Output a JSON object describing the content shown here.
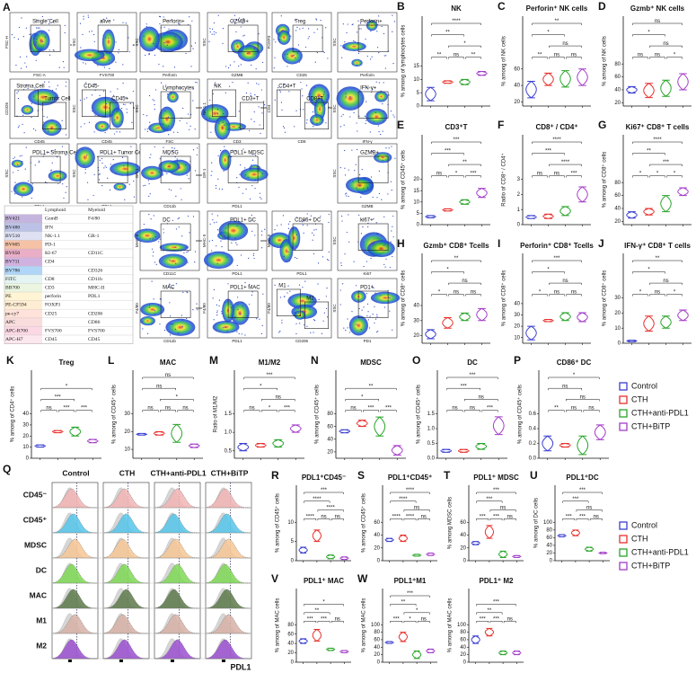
{
  "figure_letter": "A",
  "flow": {
    "plots": [
      {
        "x": "FSC-A",
        "y": "FSC-H",
        "gates": [
          "Single Cell"
        ]
      },
      {
        "x": "FVS700",
        "y": "SSC",
        "gates": [
          "alive"
        ]
      },
      {
        "x": "Perforin",
        "y": "SSC",
        "gates": [
          "Perforin+"
        ]
      },
      {
        "x": "GZMB",
        "y": "SSC",
        "gates": [
          "GZMB+"
        ]
      },
      {
        "x": "CD25",
        "y": "FOXP3",
        "gates": [
          "Treg"
        ]
      },
      {
        "x": "Perforin",
        "y": "SSC",
        "gates": [
          "Perforin+"
        ]
      },
      {
        "x": "CD45",
        "y": "CD326",
        "gates": [
          "Stroma Cell",
          "Tumor Cell"
        ]
      },
      {
        "x": "CD45",
        "y": "SSC",
        "gates": [
          "CD45-",
          "CD45+"
        ]
      },
      {
        "x": "FSC",
        "y": "SSC",
        "gates": [
          "Lymphocytes"
        ]
      },
      {
        "x": "CD3",
        "y": "NK-1.1",
        "gates": [
          "NK",
          "CD3+T"
        ]
      },
      {
        "x": "CD8",
        "y": "CD4",
        "gates": [
          "CD4+T",
          "CD8+T"
        ]
      },
      {
        "x": "IFN-γ",
        "y": "SSC",
        "gates": [
          "IFN-γ+"
        ]
      },
      {
        "x": "PDL1",
        "y": "SSC",
        "gates": [
          "PDL1+ Stroma Cell"
        ]
      },
      {
        "x": "PDL1",
        "y": "SSC",
        "gates": [
          "PDL1+ Tumor Cell"
        ]
      },
      {
        "x": "CD11b",
        "y": "GR-1",
        "gates": [
          "MDSC"
        ]
      },
      {
        "x": "PDL1",
        "y": "GR-1",
        "gates": [
          "PDL1+ MDSC"
        ]
      },
      {
        "x": "GZMB",
        "y": "SSC",
        "gates": [
          "GZMB+"
        ]
      },
      {
        "x": "CD11C",
        "y": "MHC-II",
        "gates": [
          "DC"
        ]
      },
      {
        "x": "PDL1",
        "y": "MHC-II",
        "gates": [
          "PDL1+ DC"
        ]
      },
      {
        "x": "PDL1",
        "y": "MHC-II",
        "gates": [
          "CD86+ DC"
        ]
      },
      {
        "x": "Ki67",
        "y": "SSC",
        "gates": [
          "ki67+"
        ]
      },
      {
        "x": "CD11b",
        "y": "F4/80",
        "gates": [
          "MAC"
        ]
      },
      {
        "x": "PDL1",
        "y": "F4/80",
        "gates": [
          "PDL1+ MAC"
        ]
      },
      {
        "x": "CD206",
        "y": "F4/80",
        "gates": [
          "M1",
          "M2"
        ]
      },
      {
        "x": "PD1",
        "y": "SSC",
        "gates": [
          "PD1+"
        ]
      }
    ]
  },
  "table": {
    "header": [
      null,
      "Lymphoid",
      "Myeloid"
    ],
    "rows": [
      [
        "BV421",
        "GzmB",
        "F4/80"
      ],
      [
        "BV480",
        "IFN",
        null
      ],
      [
        "BV510",
        "NK-1.1",
        "GR-1"
      ],
      [
        "BV605",
        "PD-1",
        null
      ],
      [
        "BV650",
        "KI-67",
        "CD11C"
      ],
      [
        "BV711",
        "CD4",
        null
      ],
      [
        "BV786",
        null,
        "CD326"
      ],
      [
        "FITC",
        "CD8",
        "CD11b"
      ],
      [
        "BB700",
        "CD3",
        "MHC-II"
      ],
      [
        "PE",
        "perforin",
        "PDL1"
      ],
      [
        "PE-CF594",
        "FOXP3",
        null
      ],
      [
        "pe-cy7",
        "CD25",
        "CD206"
      ],
      [
        "APC",
        null,
        "CD86"
      ],
      [
        "APC-R700",
        "FVS700",
        "FVS700"
      ],
      [
        "APC-H7",
        "CD45",
        "CD45"
      ]
    ]
  },
  "groups": [
    {
      "name": "Control",
      "color": "#3a3fcf"
    },
    {
      "name": "CTH",
      "color": "#e8312d"
    },
    {
      "name": "CTH+anti-PDL1",
      "color": "#2aa52a"
    },
    {
      "name": "CTH+BiTP",
      "color": "#a33cc8"
    }
  ],
  "chart_data": [
    {
      "type": "violin",
      "letter": "B",
      "title": "NK",
      "ylabel": "% among of lymphocytes cells",
      "ylim": [
        0,
        17
      ],
      "yticks": [
        0,
        5,
        10,
        15
      ],
      "groups": [
        [
          2,
          7
        ],
        [
          8.5,
          9.5
        ],
        [
          8,
          10
        ],
        [
          11.5,
          13
        ]
      ],
      "sig": [
        "****",
        "**",
        "*",
        "**",
        "ns",
        "**"
      ]
    },
    {
      "type": "violin",
      "letter": "C",
      "title": "Perforin⁺ NK cells",
      "ylabel": "% among of NK cells",
      "ylim": [
        15,
        70
      ],
      "yticks": [
        20,
        40,
        60
      ],
      "groups": [
        [
          25,
          45
        ],
        [
          40,
          55
        ],
        [
          38,
          58
        ],
        [
          40,
          60
        ]
      ],
      "sig": [
        "**",
        "*",
        "ns",
        "**",
        "ns",
        "ns"
      ]
    },
    {
      "type": "violin",
      "letter": "D",
      "title": "Gzmb⁺ NK cells",
      "ylabel": "% among of NK cells",
      "ylim": [
        15,
        85
      ],
      "yticks": [
        20,
        40,
        60,
        80
      ],
      "groups": [
        [
          35,
          45
        ],
        [
          28,
          50
        ],
        [
          30,
          55
        ],
        [
          40,
          65
        ]
      ],
      "sig": [
        "ns",
        "*",
        "ns",
        "ns",
        "ns",
        "*"
      ]
    },
    {
      "type": "violin",
      "letter": "E",
      "title": "CD3⁺T",
      "ylabel": "% among of CD45⁺ cells",
      "ylim": [
        0,
        20
      ],
      "yticks": [
        0,
        5,
        10,
        15,
        20
      ],
      "groups": [
        [
          3,
          4
        ],
        [
          6,
          7
        ],
        [
          9,
          11
        ],
        [
          12,
          16
        ]
      ],
      "sig": [
        "***",
        "***",
        "**",
        "ns",
        "*",
        "***"
      ]
    },
    {
      "type": "violin",
      "letter": "F",
      "title": "CD8⁺ / CD4⁺",
      "ylabel": "Radio of CD8⁺ / CD4⁺",
      "ylim": [
        0,
        3
      ],
      "yticks": [
        0,
        1,
        2,
        3
      ],
      "groups": [
        [
          0.4,
          0.6
        ],
        [
          0.4,
          0.7
        ],
        [
          0.6,
          1.2
        ],
        [
          1.5,
          2.5
        ]
      ],
      "sig": [
        "****",
        "***",
        "****",
        "ns",
        "ns",
        "***"
      ]
    },
    {
      "type": "violin",
      "letter": "G",
      "title": "Ki67⁺ CD8⁺ T cells",
      "ylabel": "% among of CD8⁺ cells",
      "ylim": [
        15,
        85
      ],
      "yticks": [
        20,
        40,
        60,
        80
      ],
      "groups": [
        [
          25,
          35
        ],
        [
          30,
          40
        ],
        [
          35,
          60
        ],
        [
          60,
          72
        ]
      ],
      "sig": [
        "****",
        "**",
        "***",
        "*",
        "*",
        "*"
      ]
    },
    {
      "type": "violin",
      "letter": "H",
      "title": "Gzmb⁺ CD8⁺ Tcells",
      "ylabel": "% among of CD8⁺ cells",
      "ylim": [
        15,
        45
      ],
      "yticks": [
        20,
        30,
        40
      ],
      "groups": [
        [
          18,
          24
        ],
        [
          25,
          32
        ],
        [
          30,
          35
        ],
        [
          30,
          38
        ]
      ],
      "sig": [
        "**",
        "*",
        "ns",
        "*",
        "ns",
        "ns"
      ]
    },
    {
      "type": "violin",
      "letter": "I",
      "title": "Perforin⁺ CD8⁺ Tcells",
      "ylabel": "% among of CD8⁺ cells",
      "ylim": [
        5,
        45
      ],
      "yticks": [
        10,
        20,
        30,
        40
      ],
      "groups": [
        [
          8,
          20
        ],
        [
          24,
          26
        ],
        [
          25,
          32
        ],
        [
          24,
          32
        ]
      ],
      "sig": [
        "***",
        "*",
        "ns",
        "*",
        "ns",
        "ns"
      ]
    },
    {
      "type": "violin",
      "letter": "J",
      "title": "IFN-γ⁺ CD8⁺ T cells",
      "ylabel": "% among of CD8⁺ cells",
      "ylim": [
        0,
        30
      ],
      "yticks": [
        0,
        10,
        20,
        30
      ],
      "groups": [
        [
          1,
          2
        ],
        [
          8,
          18
        ],
        [
          10,
          18
        ],
        [
          15,
          22
        ]
      ],
      "sig": [
        "**",
        "*",
        "ns",
        "*",
        "ns",
        "*"
      ]
    },
    {
      "type": "violin",
      "letter": "K",
      "title": "Treg",
      "ylabel": "% among of CD4⁺ cells",
      "ylim": [
        0,
        40
      ],
      "yticks": [
        0,
        10,
        20,
        30,
        40
      ],
      "groups": [
        [
          10,
          12
        ],
        [
          23,
          25
        ],
        [
          20,
          28
        ],
        [
          14,
          17
        ]
      ],
      "sig": [
        "*",
        "***",
        "ns",
        "***",
        "***"
      ]
    },
    {
      "type": "violin",
      "letter": "L",
      "title": "MAC",
      "ylabel": "% among of CD45⁺ cells",
      "ylim": [
        5,
        30
      ],
      "yticks": [
        10,
        20,
        30
      ],
      "groups": [
        [
          18,
          19
        ],
        [
          18,
          20
        ],
        [
          14,
          24
        ],
        [
          11,
          13
        ]
      ],
      "sig": [
        "ns",
        "ns",
        "*",
        "ns",
        "ns",
        "ns"
      ]
    },
    {
      "type": "violin",
      "letter": "M",
      "title": "M1/M2",
      "ylabel": "Ratio of M1/M2",
      "ylim": [
        0.3,
        1.5
      ],
      "yticks": [
        0.5,
        {
          "value": 1,
          "label": "1.0"
        },
        1.5
      ],
      "groups": [
        [
          0.5,
          0.7
        ],
        [
          0.6,
          0.7
        ],
        [
          0.6,
          0.8
        ],
        [
          1.0,
          1.2
        ]
      ],
      "sig": [
        "***",
        "*",
        "ns",
        "ns",
        "*",
        "***"
      ]
    },
    {
      "type": "violin",
      "letter": "N",
      "title": "MDSC",
      "ylabel": "% among of CD45⁺ cells",
      "ylim": [
        10,
        80
      ],
      "yticks": [
        20,
        40,
        60,
        80
      ],
      "groups": [
        [
          50,
          55
        ],
        [
          60,
          70
        ],
        [
          45,
          75
        ],
        [
          15,
          30
        ]
      ],
      "sig": [
        "**",
        "*",
        "ns",
        "***",
        "***"
      ]
    },
    {
      "type": "violin",
      "letter": "O",
      "title": "DC",
      "ylabel": "% among of CD45⁺ cells",
      "ylim": [
        0,
        1.5
      ],
      "yticks": [
        {
          "value": 0,
          "label": "0.0"
        },
        0.5,
        {
          "value": 1,
          "label": "1.0"
        },
        1.5
      ],
      "groups": [
        [
          0.2,
          0.3
        ],
        [
          0.2,
          0.3
        ],
        [
          0.3,
          0.5
        ],
        [
          0.8,
          1.4
        ]
      ],
      "sig": [
        "***",
        "***",
        "ns",
        "ns",
        "ns",
        "***"
      ]
    },
    {
      "type": "violin",
      "letter": "P",
      "title": "CD86⁺ DC",
      "ylabel": "% among of CD45⁺ cells",
      "ylim": [
        0,
        0.6
      ],
      "yticks": [
        {
          "value": 0,
          "label": "0.0"
        },
        0.2,
        0.4,
        0.6
      ],
      "groups": [
        [
          0.1,
          0.3
        ],
        [
          0.15,
          0.2
        ],
        [
          0.05,
          0.3
        ],
        [
          0.25,
          0.45
        ]
      ],
      "sig": [
        "*",
        "ns",
        "ns",
        "**",
        "ns",
        "ns"
      ]
    },
    {
      "type": "violin",
      "letter": "R",
      "title": "PDL1⁺CD45⁻",
      "ylabel": "% among of CD45⁺ cells",
      "ylim": [
        0,
        10
      ],
      "yticks": [
        0,
        5,
        10
      ],
      "groups": [
        [
          2,
          3.5
        ],
        [
          5,
          8
        ],
        [
          0.5,
          1.5
        ],
        [
          0.3,
          1
        ]
      ],
      "sig": [
        "***",
        "****",
        "****",
        "****",
        "ns",
        "ns"
      ]
    },
    {
      "type": "violin",
      "letter": "S",
      "title": "PDL1⁺CD45⁺",
      "ylabel": "% among of CD45⁺ cells",
      "ylim": [
        0,
        60
      ],
      "yticks": [
        0,
        20,
        40,
        60
      ],
      "groups": [
        [
          30,
          35
        ],
        [
          30,
          40
        ],
        [
          7,
          10
        ],
        [
          8,
          12
        ]
      ],
      "sig": [
        "****",
        "****",
        "ns",
        "****",
        "****",
        "ns"
      ]
    },
    {
      "type": "violin",
      "letter": "T",
      "title": "PDL1⁺ MDSC",
      "ylabel": "% among MDSC cells",
      "ylim": [
        0,
        60
      ],
      "yticks": [
        0,
        20,
        40,
        60
      ],
      "groups": [
        [
          25,
          30
        ],
        [
          35,
          55
        ],
        [
          5,
          15
        ],
        [
          5,
          8
        ]
      ],
      "sig": [
        "***",
        "***",
        "ns",
        "***",
        "***",
        "ns"
      ]
    },
    {
      "type": "violin",
      "letter": "U",
      "title": "PDL1⁺DC",
      "ylabel": "% among of DC cells",
      "ylim": [
        0,
        100
      ],
      "yticks": [
        0,
        20,
        40,
        60,
        80,
        100
      ],
      "groups": [
        [
          62,
          68
        ],
        [
          65,
          80
        ],
        [
          25,
          35
        ],
        [
          18,
          22
        ]
      ],
      "sig": [
        "***",
        "***",
        "ns",
        "***",
        "***",
        "ns"
      ]
    },
    {
      "type": "violin",
      "letter": "V",
      "title": "PDL1⁺ MAC",
      "ylabel": "% among of MAC cells",
      "ylim": [
        0,
        80
      ],
      "yticks": [
        0,
        20,
        40,
        60,
        80
      ],
      "groups": [
        [
          40,
          50
        ],
        [
          45,
          70
        ],
        [
          25,
          30
        ],
        [
          20,
          25
        ]
      ],
      "sig": [
        "*",
        "**",
        "***",
        "***",
        "ns"
      ]
    },
    {
      "type": "violin",
      "letter": "W",
      "title": "PDL1⁺M1",
      "ylabel": "% among of MAC cells",
      "ylim": [
        0,
        100
      ],
      "yticks": [
        0,
        20,
        40,
        60,
        80,
        100
      ],
      "groups": [
        [
          50,
          55
        ],
        [
          55,
          80
        ],
        [
          10,
          30
        ],
        [
          25,
          35
        ]
      ],
      "sig": [
        "***",
        "**",
        "*",
        "***",
        "*",
        "ns"
      ]
    },
    {
      "type": "violin",
      "title": "PDL1⁺ M2",
      "ylabel": "% among of MAC cells",
      "ylim": [
        0,
        100
      ],
      "yticks": [
        0,
        20,
        40,
        60,
        80,
        100
      ],
      "groups": [
        [
          50,
          70
        ],
        [
          70,
          90
        ],
        [
          20,
          30
        ],
        [
          20,
          30
        ]
      ],
      "sig": [
        "***",
        "**",
        "***",
        "***",
        "ns"
      ]
    }
  ],
  "histograms": {
    "letter": "Q",
    "columns": [
      "Control",
      "CTH",
      "CTH+anti-PDL1",
      "CTH+BiTP"
    ],
    "rows": [
      {
        "name": "CD45⁻",
        "color": "#f3b4b4"
      },
      {
        "name": "CD45⁺",
        "color": "#57c6ea"
      },
      {
        "name": "MDSC",
        "color": "#f7c796"
      },
      {
        "name": "DC",
        "color": "#7fd957"
      },
      {
        "name": "MAC",
        "color": "#5d7a4b"
      },
      {
        "name": "M1",
        "color": "#d8b2a6"
      },
      {
        "name": "M2",
        "color": "#9b4fd0"
      }
    ],
    "xlabel": "PDL1"
  }
}
